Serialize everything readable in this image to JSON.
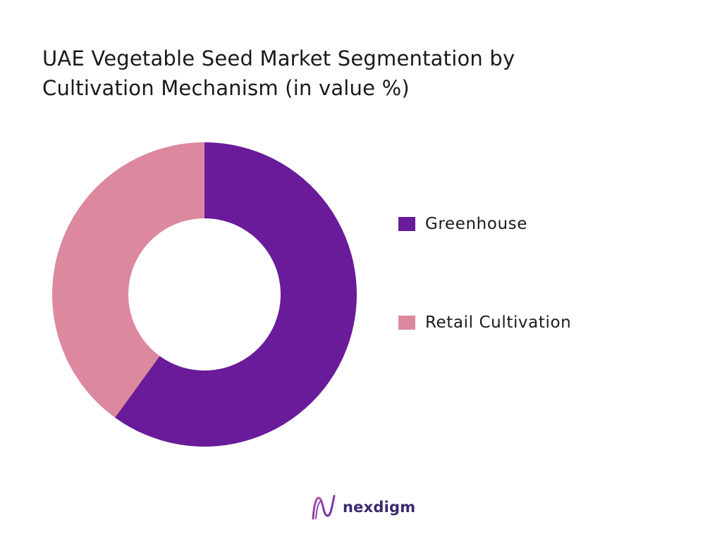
{
  "title_lines": [
    "UAE Vegetable Seed Market Segmentation by",
    "Cultivation Mechanism (in value %)"
  ],
  "chart_data": {
    "type": "pie",
    "variant": "donut",
    "title": "UAE Vegetable Seed Market Segmentation by Cultivation Mechanism (in value %)",
    "categories": [
      "Greenhouse",
      "Retail Cultivation"
    ],
    "values": [
      60,
      40
    ],
    "colors": [
      "#6a1b9a",
      "#dc889e"
    ],
    "legend_position": "right",
    "start_angle_deg": 0,
    "direction": "clockwise"
  },
  "brand": {
    "name": "nexdigm",
    "icon": "nexdigm-logo-icon"
  }
}
